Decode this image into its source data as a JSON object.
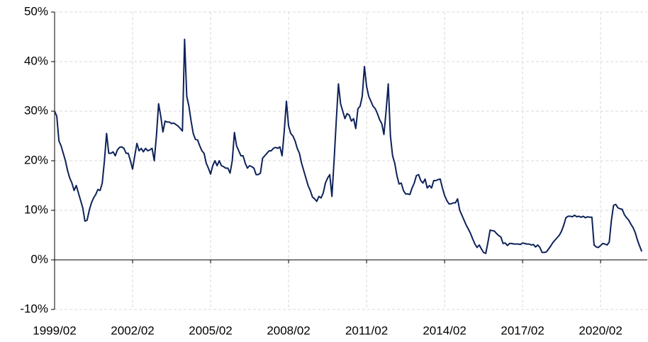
{
  "chart_data": {
    "type": "line",
    "x": [
      "1999/02",
      "1999/03",
      "1999/04",
      "1999/05",
      "1999/06",
      "1999/07",
      "1999/08",
      "1999/09",
      "1999/10",
      "1999/11",
      "1999/12",
      "2000/01",
      "2000/02",
      "2000/03",
      "2000/04",
      "2000/05",
      "2000/06",
      "2000/07",
      "2000/08",
      "2000/09",
      "2000/10",
      "2000/11",
      "2000/12",
      "2001/01",
      "2001/02",
      "2001/03",
      "2001/04",
      "2001/05",
      "2001/06",
      "2001/07",
      "2001/08",
      "2001/09",
      "2001/10",
      "2001/11",
      "2001/12",
      "2002/01",
      "2002/02",
      "2002/03",
      "2002/04",
      "2002/05",
      "2002/06",
      "2002/07",
      "2002/08",
      "2002/09",
      "2002/10",
      "2002/11",
      "2002/12",
      "2003/01",
      "2003/02",
      "2003/03",
      "2003/04",
      "2003/05",
      "2003/06",
      "2003/07",
      "2003/08",
      "2003/09",
      "2003/10",
      "2003/11",
      "2003/12",
      "2004/01",
      "2004/02",
      "2004/03",
      "2004/04",
      "2004/05",
      "2004/06",
      "2004/07",
      "2004/08",
      "2004/09",
      "2004/10",
      "2004/11",
      "2004/12",
      "2005/01",
      "2005/02",
      "2005/03",
      "2005/04",
      "2005/05",
      "2005/06",
      "2005/07",
      "2005/08",
      "2005/09",
      "2005/10",
      "2005/11",
      "2005/12",
      "2006/01",
      "2006/02",
      "2006/03",
      "2006/04",
      "2006/05",
      "2006/06",
      "2006/07",
      "2006/08",
      "2006/09",
      "2006/10",
      "2006/11",
      "2006/12",
      "2007/01",
      "2007/02",
      "2007/03",
      "2007/04",
      "2007/05",
      "2007/06",
      "2007/07",
      "2007/08",
      "2007/09",
      "2007/10",
      "2007/11",
      "2007/12",
      "2008/01",
      "2008/02",
      "2008/03",
      "2008/04",
      "2008/05",
      "2008/06",
      "2008/07",
      "2008/08",
      "2008/09",
      "2008/10",
      "2008/11",
      "2008/12",
      "2009/01",
      "2009/02",
      "2009/03",
      "2009/04",
      "2009/05",
      "2009/06",
      "2009/07",
      "2009/08",
      "2009/09",
      "2009/10",
      "2009/11",
      "2009/12",
      "2010/01",
      "2010/02",
      "2010/03",
      "2010/04",
      "2010/05",
      "2010/06",
      "2010/07",
      "2010/08",
      "2010/09",
      "2010/10",
      "2010/11",
      "2010/12",
      "2011/01",
      "2011/02",
      "2011/03",
      "2011/04",
      "2011/05",
      "2011/06",
      "2011/07",
      "2011/08",
      "2011/09",
      "2011/10",
      "2011/11",
      "2011/12",
      "2012/01",
      "2012/02",
      "2012/03",
      "2012/04",
      "2012/05",
      "2012/06",
      "2012/07",
      "2012/08",
      "2012/09",
      "2012/10",
      "2012/11",
      "2012/12",
      "2013/01",
      "2013/02",
      "2013/03",
      "2013/04",
      "2013/05",
      "2013/06",
      "2013/07",
      "2013/08",
      "2013/09",
      "2013/10",
      "2013/11",
      "2013/12",
      "2014/01",
      "2014/02",
      "2014/03",
      "2014/04",
      "2014/05",
      "2014/06",
      "2014/07",
      "2014/08",
      "2014/09",
      "2014/10",
      "2014/11",
      "2014/12",
      "2015/01",
      "2015/02",
      "2015/03",
      "2015/04",
      "2015/05",
      "2015/06",
      "2015/07",
      "2015/08",
      "2015/09",
      "2015/10",
      "2015/11",
      "2015/12",
      "2016/01",
      "2016/02",
      "2016/03",
      "2016/04",
      "2016/05",
      "2016/06",
      "2016/07",
      "2016/08",
      "2016/09",
      "2016/10",
      "2016/11",
      "2016/12",
      "2017/01",
      "2017/02",
      "2017/03",
      "2017/04",
      "2017/05",
      "2017/06",
      "2017/07",
      "2017/08",
      "2017/09",
      "2017/10",
      "2017/11",
      "2017/12",
      "2018/01",
      "2018/02",
      "2018/03",
      "2018/04",
      "2018/05",
      "2018/06",
      "2018/07",
      "2018/08",
      "2018/09",
      "2018/10",
      "2018/11",
      "2018/12",
      "2019/01",
      "2019/02",
      "2019/03",
      "2019/04",
      "2019/05",
      "2019/06",
      "2019/07",
      "2019/08",
      "2019/09",
      "2019/10",
      "2019/11",
      "2019/12",
      "2020/01",
      "2020/02",
      "2020/03",
      "2020/04",
      "2020/05",
      "2020/06",
      "2020/07",
      "2020/08",
      "2020/09",
      "2020/10",
      "2020/11",
      "2020/12",
      "2021/01",
      "2021/02",
      "2021/03",
      "2021/04",
      "2021/05",
      "2021/06",
      "2021/07",
      "2021/08",
      "2021/09"
    ],
    "series": [
      {
        "color": "#0d2259",
        "values": [
          30,
          29,
          24,
          23,
          21.5,
          20,
          18,
          16.5,
          15.5,
          14,
          15,
          13.5,
          12,
          10.5,
          7.8,
          8,
          10,
          11.5,
          12.5,
          13.2,
          14.2,
          14,
          15.5,
          20,
          25.5,
          21.5,
          21.5,
          21.8,
          21,
          22.2,
          22.7,
          22.8,
          22.5,
          21.5,
          21.5,
          20,
          18.3,
          21,
          23.5,
          22,
          22.5,
          21.8,
          22.5,
          22,
          22.2,
          22.5,
          20,
          25,
          31.5,
          29,
          25.8,
          28,
          27.8,
          27.8,
          27.5,
          27.6,
          27.3,
          27,
          26.5,
          26,
          44.5,
          33,
          31,
          28,
          25.5,
          24.3,
          24.2,
          23,
          22,
          21.5,
          19.5,
          18.5,
          17.3,
          19,
          20,
          19,
          20,
          19,
          18.8,
          18.5,
          18.5,
          17.5,
          20,
          25.7,
          23,
          22,
          21,
          21,
          19.5,
          18.5,
          19,
          18.8,
          18.5,
          17.2,
          17.2,
          17.5,
          20.5,
          21,
          21.5,
          22,
          22,
          22.5,
          22.7,
          22.5,
          22.8,
          21,
          26,
          32,
          27,
          25.5,
          25,
          24,
          22.5,
          21.5,
          19.5,
          18,
          16.5,
          15,
          14,
          12.7,
          12.3,
          11.8,
          12.8,
          12.5,
          13.5,
          15.5,
          16.5,
          17.2,
          12.8,
          20,
          28,
          35.5,
          31.5,
          30,
          28.5,
          29.5,
          29.2,
          28,
          28.5,
          26.5,
          30.5,
          31,
          33,
          39,
          35,
          33,
          32,
          31,
          30.5,
          29.5,
          28.3,
          27.5,
          25.3,
          30,
          35.5,
          25,
          21,
          19.5,
          17,
          15.3,
          15.5,
          14,
          13.3,
          13.3,
          13.2,
          14.5,
          15.5,
          17,
          17.2,
          16,
          15.5,
          16.3,
          14.5,
          15,
          14.5,
          16,
          16,
          16.2,
          16.3,
          14.5,
          13,
          12,
          11.3,
          11.3,
          11.5,
          11.5,
          12.3,
          10,
          9,
          8,
          7,
          6.2,
          5.3,
          4.2,
          3.2,
          2.5,
          3,
          2.2,
          1.5,
          1.3,
          3.5,
          6,
          5.9,
          5.8,
          5.3,
          4.9,
          4.6,
          3.3,
          3.4,
          2.9,
          3.3,
          3.3,
          3.2,
          3.2,
          3.2,
          3.1,
          3.4,
          3.3,
          3.2,
          3.2,
          3.0,
          3.1,
          2.6,
          3.0,
          2.5,
          1.5,
          1.5,
          1.6,
          2.2,
          2.8,
          3.5,
          4,
          4.5,
          5,
          5.8,
          7,
          8.5,
          8.8,
          8.8,
          8.7,
          9,
          8.7,
          8.8,
          8.6,
          8.8,
          8.5,
          8.7,
          8.6,
          8.6,
          3,
          2.6,
          2.5,
          2.9,
          3.3,
          3.2,
          3.0,
          3.6,
          8,
          11,
          11.2,
          10.5,
          10.3,
          10.2,
          9.1,
          8.5,
          8,
          7.2,
          6.5,
          5.5,
          4,
          2.8,
          1.7
        ]
      }
    ],
    "ylim": [
      -10,
      50
    ],
    "yticks": [
      {
        "value": -10,
        "label": "-10%"
      },
      {
        "value": 0,
        "label": "0%"
      },
      {
        "value": 10,
        "label": "10%"
      },
      {
        "value": 20,
        "label": "20%"
      },
      {
        "value": 30,
        "label": "30%"
      },
      {
        "value": 40,
        "label": "40%"
      },
      {
        "value": 50,
        "label": "50%"
      }
    ],
    "xticks": [
      "1999/02",
      "2002/02",
      "2005/02",
      "2008/02",
      "2011/02",
      "2014/02",
      "2017/02",
      "2020/02"
    ],
    "grid": true
  }
}
